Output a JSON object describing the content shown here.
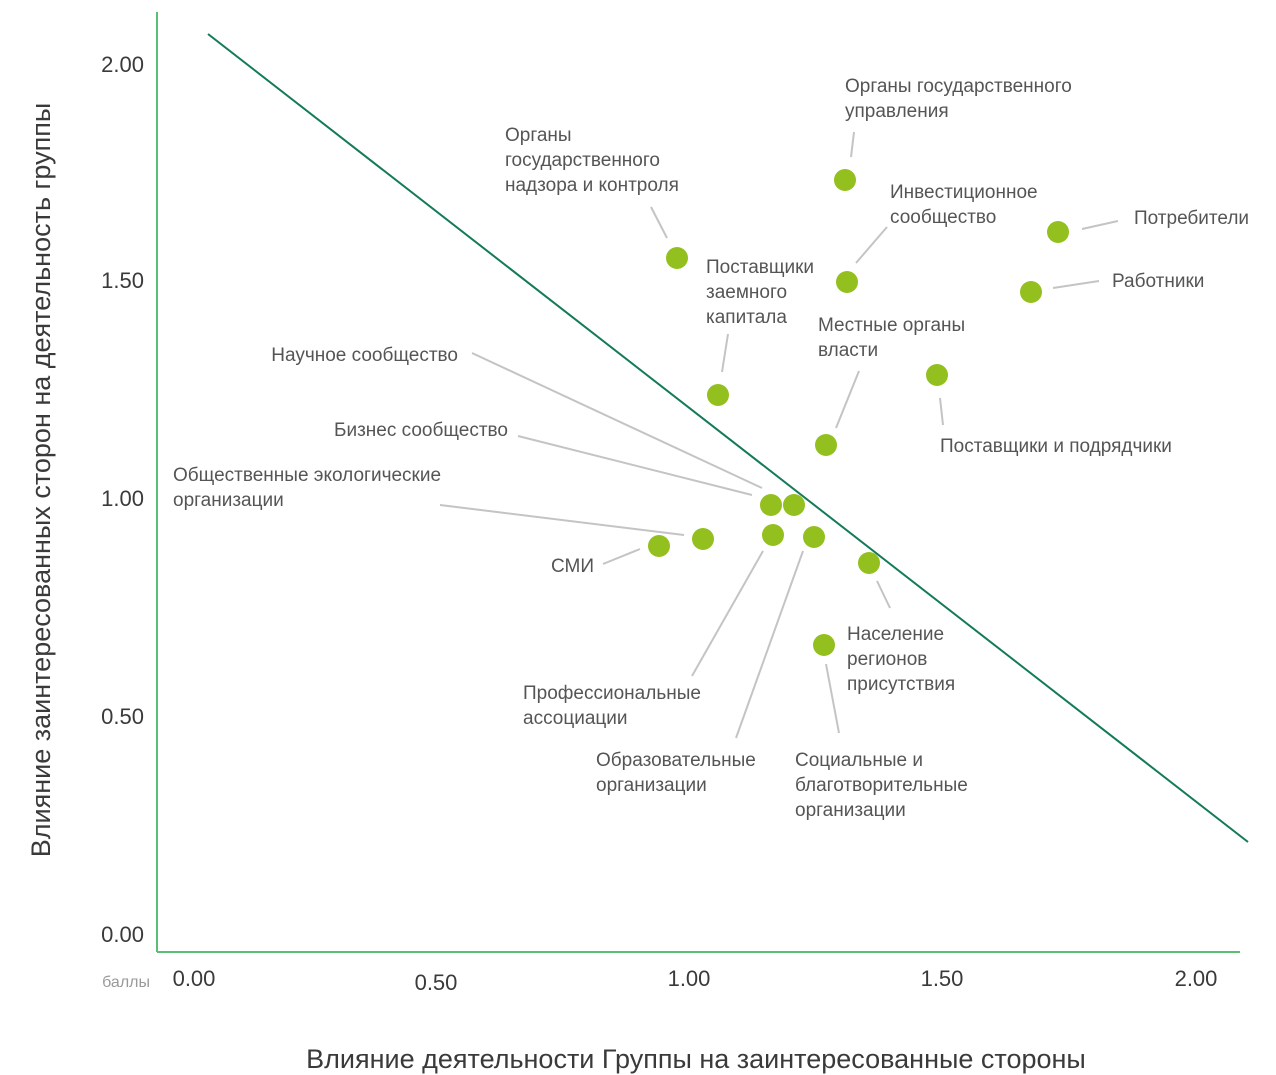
{
  "chart_data": {
    "type": "scatter",
    "xlabel": "Влияние деятельности Группы на заинтересованные стороны",
    "ylabel": "Влияние заинтересованных сторон на деятельность группы",
    "unit_label": "баллы",
    "xlim": [
      0,
      2.1
    ],
    "ylim": [
      0,
      2.1
    ],
    "x_ticks": [
      "0.00",
      "0.50",
      "1.00",
      "1.50",
      "2.00"
    ],
    "y_ticks": [
      "0.00",
      "0.50",
      "1.00",
      "1.50",
      "2.00"
    ],
    "grid": false,
    "colors": {
      "axis": "#5bbf73",
      "trend": "#137a5a",
      "points": "#93c01f",
      "leaders": "#c4c4c4"
    },
    "trend_line": {
      "x": [
        0.1,
        2.1
      ],
      "y": [
        2.07,
        0.22
      ]
    },
    "points": [
      {
        "x": 1.31,
        "y": 1.74,
        "label": [
          "Органы государственного",
          "управления"
        ]
      },
      {
        "x": 0.98,
        "y": 1.56,
        "label": [
          "Органы",
          "государственного",
          "надзора и контроля"
        ]
      },
      {
        "x": 1.31,
        "y": 1.5,
        "label": [
          "Инвестиционное",
          "сообщество"
        ]
      },
      {
        "x": 1.73,
        "y": 1.62,
        "label": [
          "Потребители"
        ]
      },
      {
        "x": 1.67,
        "y": 1.48,
        "label": [
          "Работники"
        ]
      },
      {
        "x": 1.06,
        "y": 1.24,
        "label": [
          "Поставщики",
          "заемного",
          "капитала"
        ]
      },
      {
        "x": 1.49,
        "y": 1.29,
        "label": [
          "Поставщики и подрядчики"
        ]
      },
      {
        "x": 1.27,
        "y": 1.12,
        "label": [
          "Местные органы",
          "власти"
        ]
      },
      {
        "x": 1.17,
        "y": 0.99,
        "label": [
          "Научное сообщество"
        ]
      },
      {
        "x": 1.21,
        "y": 0.99,
        "label": [
          "Бизнес сообщество"
        ]
      },
      {
        "x": 1.03,
        "y": 0.91,
        "label": [
          "Общественные экологические",
          "организации"
        ]
      },
      {
        "x": 0.95,
        "y": 0.89,
        "label": [
          "СМИ"
        ]
      },
      {
        "x": 1.17,
        "y": 0.92,
        "label": [
          "Профессиональные",
          "ассоциации"
        ]
      },
      {
        "x": 1.25,
        "y": 0.92,
        "label": [
          "Образовательные",
          "организации"
        ]
      },
      {
        "x": 1.36,
        "y": 0.85,
        "label": [
          "Население",
          "регионов",
          "присутствия"
        ]
      },
      {
        "x": 1.27,
        "y": 0.66,
        "label": [
          "Социальные и",
          "благотворительные",
          "организации"
        ]
      }
    ]
  }
}
